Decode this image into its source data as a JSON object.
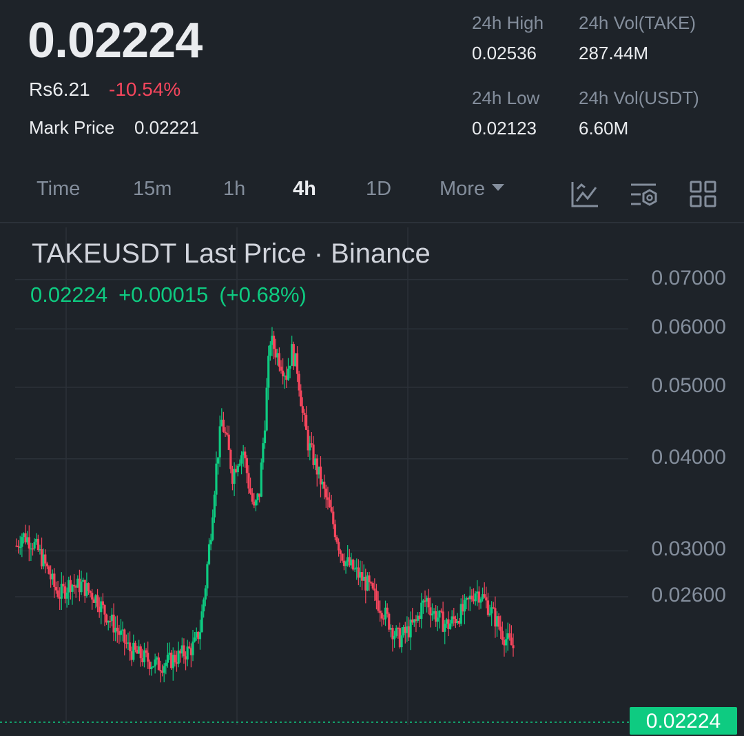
{
  "header": {
    "price": "0.02224",
    "fiat_price": "Rs6.21",
    "change_pct": "-10.54%",
    "mark_price_label": "Mark Price",
    "mark_price": "0.02221"
  },
  "stats": {
    "high_label": "24h High",
    "high": "0.02536",
    "vol_base_label": "24h Vol(TAKE)",
    "vol_base": "287.44M",
    "low_label": "24h Low",
    "low": "0.02123",
    "vol_quote_label": "24h Vol(USDT)",
    "vol_quote": "6.60M"
  },
  "tabs": [
    "Time",
    "15m",
    "1h",
    "4h",
    "1D",
    "More"
  ],
  "active_tab": "4h",
  "toolbar_icons": [
    "indicator-icon",
    "chart-settings-icon",
    "layout-grid-icon"
  ],
  "colors": {
    "up": "#0ecb81",
    "down": "#f6465d",
    "background": "#1e2329"
  },
  "chart_data": {
    "type": "candlestick",
    "title": "TAKEUSDT Last Price · Binance",
    "legend": {
      "last": "0.02224",
      "change": "+0.00015",
      "change_pct": "(+0.68%)"
    },
    "y_ticks": [
      "0.07000",
      "0.06000",
      "0.05000",
      "0.04000",
      "0.03000",
      "0.02600"
    ],
    "last_price_tag": "0.02224",
    "y_scale": "log",
    "close_path": [
      0.0305,
      0.0315,
      0.0312,
      0.0308,
      0.03,
      0.029,
      0.028,
      0.0268,
      0.0262,
      0.0266,
      0.0272,
      0.0268,
      0.027,
      0.0266,
      0.0262,
      0.0258,
      0.025,
      0.0244,
      0.0238,
      0.0232,
      0.0226,
      0.022,
      0.0218,
      0.0216,
      0.0214,
      0.0212,
      0.021,
      0.0211,
      0.0212,
      0.0214,
      0.0216,
      0.0218,
      0.022,
      0.0224,
      0.0235,
      0.027,
      0.032,
      0.039,
      0.045,
      0.042,
      0.038,
      0.04,
      0.041,
      0.037,
      0.034,
      0.036,
      0.045,
      0.058,
      0.056,
      0.054,
      0.052,
      0.056,
      0.053,
      0.046,
      0.042,
      0.04,
      0.038,
      0.036,
      0.034,
      0.032,
      0.03,
      0.029,
      0.0285,
      0.028,
      0.0275,
      0.027,
      0.0262,
      0.0255,
      0.0248,
      0.024,
      0.0232,
      0.0228,
      0.0232,
      0.0236,
      0.024,
      0.0252,
      0.0258,
      0.0248,
      0.0244,
      0.024,
      0.0238,
      0.0242,
      0.0246,
      0.025,
      0.0258,
      0.0265,
      0.0262,
      0.0255,
      0.0248,
      0.024,
      0.0232,
      0.0226,
      0.0222
    ]
  }
}
